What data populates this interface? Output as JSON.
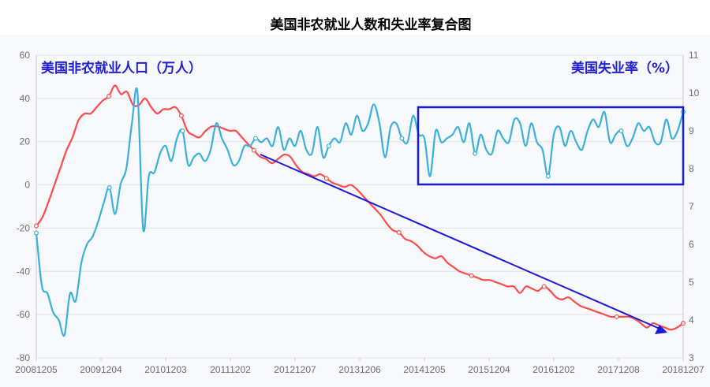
{
  "chart_data": {
    "type": "line",
    "title": "美国非农就业人数和失业率复合图",
    "series": [
      {
        "name": "美国非农就业人口（万人）",
        "axis": "left",
        "color": "#ff4a4a",
        "values": [
          -19,
          -15,
          -8,
          0,
          8,
          16,
          22,
          30,
          33,
          33,
          36,
          39,
          41,
          46,
          42,
          43,
          37,
          37,
          40,
          36,
          33,
          35,
          35,
          36,
          32,
          25,
          23,
          22,
          25,
          27,
          27,
          26,
          25,
          25,
          22,
          19,
          16,
          13,
          12,
          10,
          12,
          14,
          13,
          9,
          6,
          5,
          4,
          5,
          3,
          1,
          0,
          -1,
          0,
          -2,
          -5,
          -8,
          -11,
          -14,
          -18,
          -21,
          -22,
          -25,
          -26,
          -28,
          -31,
          -33,
          -34,
          -33,
          -36,
          -38,
          -40,
          -41,
          -42,
          -43,
          -44,
          -44,
          -45,
          -46,
          -47,
          -47,
          -50,
          -47,
          -48,
          -49,
          -47,
          -49,
          -52,
          -53,
          -52,
          -54,
          -56,
          -57,
          -58,
          -59,
          -60,
          -61,
          -61,
          -61,
          -61,
          -62,
          -64,
          -66,
          -64,
          -65,
          -66,
          -67,
          -66,
          -64
        ]
      },
      {
        "name": "美国失业率（%）",
        "axis": "right",
        "color": "#3ab0dc",
        "values": [
          6.3,
          4.9,
          4.7,
          4.2,
          4.0,
          3.6,
          4.7,
          4.5,
          5.5,
          6.0,
          6.2,
          6.6,
          7.1,
          7.5,
          6.8,
          7.6,
          8.0,
          9.2,
          10.0,
          6.4,
          7.8,
          7.9,
          8.4,
          8.6,
          8.2,
          8.8,
          9.0,
          8.1,
          8.3,
          8.4,
          8.2,
          8.5,
          9.2,
          8.8,
          8.5,
          8.1,
          8.2,
          8.6,
          8.6,
          8.8,
          8.7,
          8.8,
          8.6,
          9.1,
          8.5,
          8.8,
          8.6,
          9.0,
          8.5,
          8.4,
          9.1,
          8.3,
          8.6,
          8.8,
          8.7,
          9.2,
          8.9,
          9.4,
          9.0,
          9.2,
          9.7,
          9.2,
          8.3,
          9.1,
          9.2,
          8.8,
          8.7,
          9.4,
          8.9,
          8.8,
          7.8,
          9.0,
          8.7,
          8.8,
          8.9,
          9.1,
          8.7,
          9.2,
          8.4,
          8.9,
          8.5,
          8.4,
          9.0,
          8.8,
          8.7,
          9.3,
          9.2,
          8.6,
          9.2,
          8.7,
          8.5,
          7.8,
          8.9,
          9.1,
          8.6,
          9.0,
          8.7,
          8.5,
          9.0,
          9.3,
          9.1,
          9.5,
          8.7,
          8.9,
          9.0,
          8.6,
          8.8,
          9.2,
          9.0,
          9.1,
          8.7,
          8.7,
          9.3,
          8.8,
          9.0,
          9.5
        ]
      }
    ],
    "x_tick_labels": [
      "20081205",
      "20091204",
      "20101203",
      "20111202",
      "20121207",
      "20131206",
      "20141205",
      "20151204",
      "20161202",
      "20171208",
      "20181207"
    ],
    "left_axis": {
      "min": -80,
      "max": 60,
      "ticks": [
        60,
        40,
        20,
        0,
        -20,
        -40,
        -60,
        -80
      ]
    },
    "right_axis": {
      "min": 3,
      "max": 11,
      "ticks": [
        11,
        10,
        9,
        8,
        7,
        6,
        5,
        4,
        3
      ]
    },
    "grid": true,
    "annotations": [
      "blue rectangle around late unemployment-rate series",
      "blue downward trend arrow over payroll series"
    ],
    "annotation_color": "#1a1adb"
  }
}
